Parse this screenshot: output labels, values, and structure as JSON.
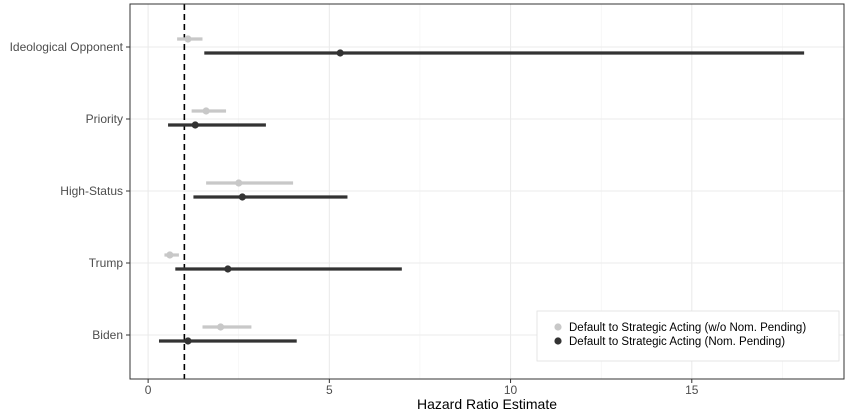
{
  "chart_data": {
    "type": "forest",
    "xlabel": "Hazard Ratio Estimate",
    "ylabel": "",
    "xlim": [
      -0.5,
      19.2
    ],
    "xticks": [
      0,
      5,
      10,
      15
    ],
    "xtick_labels": [
      "0",
      "5",
      "10",
      "15"
    ],
    "reference_line": 1,
    "reference_line_style": "dashed",
    "grid": true,
    "legend_position": "bottom-right",
    "categories": [
      "Ideological Opponent",
      "Priority",
      "High-Status",
      "Trump",
      "Biden"
    ],
    "series": [
      {
        "name": "Default to Strategic Acting (w/o Nom. Pending)",
        "color": "#c8c8c8",
        "points": [
          {
            "category": "Ideological Opponent",
            "estimate": 1.1,
            "lower": 0.8,
            "upper": 1.5
          },
          {
            "category": "Priority",
            "estimate": 1.6,
            "lower": 1.2,
            "upper": 2.15
          },
          {
            "category": "High-Status",
            "estimate": 2.5,
            "lower": 1.6,
            "upper": 4.0
          },
          {
            "category": "Trump",
            "estimate": 0.6,
            "lower": 0.45,
            "upper": 0.85
          },
          {
            "category": "Biden",
            "estimate": 2.0,
            "lower": 1.5,
            "upper": 2.85
          }
        ]
      },
      {
        "name": "Default to Strategic Acting (Nom. Pending)",
        "color": "#333333",
        "points": [
          {
            "category": "Ideological Opponent",
            "estimate": 5.3,
            "lower": 1.55,
            "upper": 18.1
          },
          {
            "category": "Priority",
            "estimate": 1.3,
            "lower": 0.55,
            "upper": 3.25
          },
          {
            "category": "High-Status",
            "estimate": 2.6,
            "lower": 1.25,
            "upper": 5.5
          },
          {
            "category": "Trump",
            "estimate": 2.2,
            "lower": 0.75,
            "upper": 7.0
          },
          {
            "category": "Biden",
            "estimate": 1.1,
            "lower": 0.3,
            "upper": 4.1
          }
        ]
      }
    ]
  }
}
